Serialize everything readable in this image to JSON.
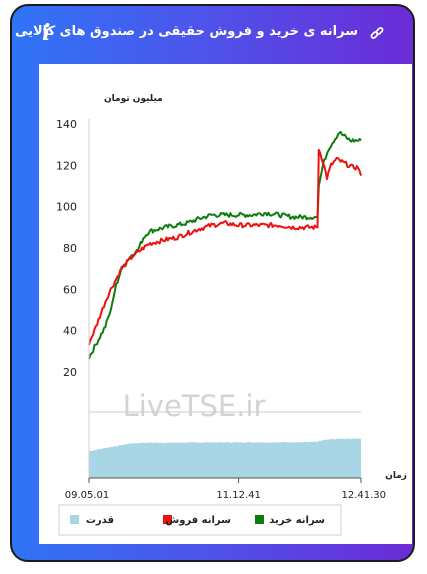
{
  "header": {
    "title": "سرانه ی خرید و فروش حقیقی در صندوق های کالایی",
    "info_icon": "info-icon",
    "link_icon": "link-icon"
  },
  "watermark": "LiveTSE.ir",
  "colors": {
    "buy": "#0f7c0f",
    "sell": "#ee1111",
    "power": "#a9d6e5",
    "header_gradient": [
      "#2f74f6",
      "#6b2bd6"
    ]
  },
  "chart_data": {
    "type": "line",
    "ylabel": "میلیون تومان",
    "xlabel": "زمان",
    "ylim": [
      20,
      140
    ],
    "yticks": [
      20,
      40,
      60,
      80,
      100,
      120,
      140
    ],
    "xticks": [
      "09.05.01",
      "11.12.41",
      "12.41.30"
    ],
    "x_tick_positions": [
      0,
      0.55,
      1
    ],
    "grid": false,
    "legend_position": "bottom",
    "legend": [
      "سرانه خرید",
      "سرانه فروش",
      "قدرت"
    ],
    "series": [
      {
        "name": "سرانه خرید",
        "color": "#0f7c0f",
        "points": [
          [
            0,
            27
          ],
          [
            0.02,
            32
          ],
          [
            0.04,
            37
          ],
          [
            0.06,
            42
          ],
          [
            0.08,
            50
          ],
          [
            0.1,
            62
          ],
          [
            0.12,
            70
          ],
          [
            0.14,
            74
          ],
          [
            0.16,
            77
          ],
          [
            0.18,
            79
          ],
          [
            0.2,
            85
          ],
          [
            0.22,
            88
          ],
          [
            0.25,
            89
          ],
          [
            0.28,
            90
          ],
          [
            0.32,
            91
          ],
          [
            0.36,
            92
          ],
          [
            0.4,
            94
          ],
          [
            0.45,
            96
          ],
          [
            0.5,
            96
          ],
          [
            0.55,
            96
          ],
          [
            0.6,
            96
          ],
          [
            0.65,
            97
          ],
          [
            0.7,
            96
          ],
          [
            0.75,
            95
          ],
          [
            0.8,
            95
          ],
          [
            0.84,
            95
          ],
          [
            0.845,
            110
          ],
          [
            0.86,
            120
          ],
          [
            0.88,
            128
          ],
          [
            0.9,
            132
          ],
          [
            0.92,
            136
          ],
          [
            0.94,
            134
          ],
          [
            0.96,
            132
          ],
          [
            1,
            132
          ]
        ]
      },
      {
        "name": "سرانه فروش",
        "color": "#ee1111",
        "points": [
          [
            0,
            34
          ],
          [
            0.02,
            40
          ],
          [
            0.04,
            47
          ],
          [
            0.06,
            54
          ],
          [
            0.08,
            60
          ],
          [
            0.1,
            65
          ],
          [
            0.12,
            70
          ],
          [
            0.14,
            73
          ],
          [
            0.16,
            76
          ],
          [
            0.18,
            78
          ],
          [
            0.2,
            80
          ],
          [
            0.22,
            82
          ],
          [
            0.25,
            83
          ],
          [
            0.28,
            84
          ],
          [
            0.32,
            85
          ],
          [
            0.36,
            87
          ],
          [
            0.4,
            89
          ],
          [
            0.45,
            91
          ],
          [
            0.5,
            92
          ],
          [
            0.55,
            91
          ],
          [
            0.6,
            91
          ],
          [
            0.65,
            91
          ],
          [
            0.7,
            91
          ],
          [
            0.75,
            90
          ],
          [
            0.8,
            90
          ],
          [
            0.84,
            90
          ],
          [
            0.845,
            128
          ],
          [
            0.86,
            122
          ],
          [
            0.875,
            114
          ],
          [
            0.89,
            120
          ],
          [
            0.91,
            123
          ],
          [
            0.94,
            121
          ],
          [
            0.97,
            119
          ],
          [
            0.99,
            119
          ],
          [
            1,
            115
          ]
        ]
      },
      {
        "name": "قدرت",
        "color": "#a9d6e5",
        "type": "area",
        "points": [
          [
            0,
            0.65
          ],
          [
            0.05,
            0.72
          ],
          [
            0.1,
            0.78
          ],
          [
            0.15,
            0.84
          ],
          [
            0.2,
            0.86
          ],
          [
            0.3,
            0.86
          ],
          [
            0.5,
            0.87
          ],
          [
            0.7,
            0.87
          ],
          [
            0.84,
            0.88
          ],
          [
            0.86,
            0.92
          ],
          [
            0.9,
            0.95
          ],
          [
            1,
            0.96
          ]
        ]
      }
    ]
  }
}
